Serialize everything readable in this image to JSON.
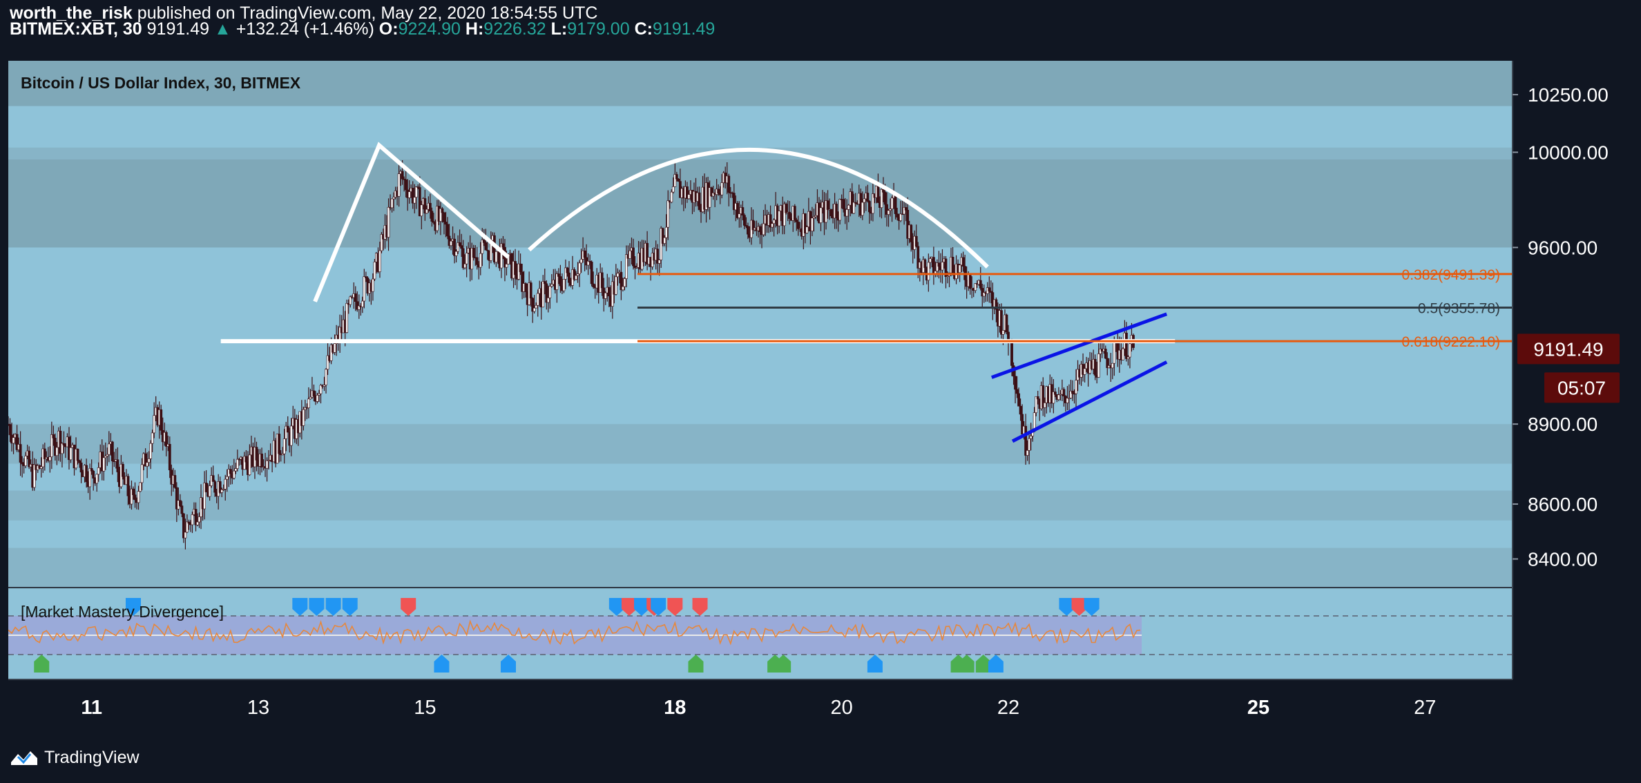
{
  "header": {
    "publisher": "worth_the_risk",
    "published_text": "published on TradingView.com, May 22, 2020 18:54:55 UTC",
    "symbol_interval": "BITMEX:XBT, 30",
    "last_price": "9191.49",
    "up_arrow": "▲",
    "change": "+132.24 (+1.46%)",
    "o_label": "O:",
    "o_value": "9224.90",
    "h_label": "H:",
    "h_value": "9226.32",
    "l_label": "L:",
    "l_value": "9179.00",
    "c_label": "C:",
    "c_value": "9191.49"
  },
  "chart": {
    "title": "Bitcoin / US Dollar Index, 30, BITMEX",
    "indicator_label": "[Market Mastery Divergence]",
    "price_label": "9191.49",
    "countdown": "05:07",
    "brand": "TradingView",
    "colors": {
      "background": "#8fc3d9",
      "dark_band": "#7fa8b8",
      "mid_band": "#87b4c7",
      "candle": "#3b0f14",
      "fib": "#e8590c",
      "fib_mid": "#2f3b44",
      "neckline": "#ffffff",
      "wedge": "#0a14e6",
      "price_tag": "#5c0b0b",
      "indicator_band": "#9aaad9",
      "osc": "#e8873a",
      "marker_blue": "#2196f3",
      "marker_red": "#f05454",
      "marker_green": "#4caf50"
    }
  },
  "chart_data": {
    "type": "line",
    "title": "Bitcoin / US Dollar Index, 30, BITMEX",
    "xlabel": "",
    "ylabel": "",
    "y_scale": "log",
    "ylim": [
      8300,
      10400
    ],
    "x_ticks": [
      {
        "label": "11",
        "bold": true,
        "day": 11
      },
      {
        "label": "13",
        "bold": false,
        "day": 13
      },
      {
        "label": "15",
        "bold": false,
        "day": 15
      },
      {
        "label": "18",
        "bold": true,
        "day": 18
      },
      {
        "label": "20",
        "bold": false,
        "day": 20
      },
      {
        "label": "22",
        "bold": false,
        "day": 22
      },
      {
        "label": "25",
        "bold": true,
        "day": 25
      },
      {
        "label": "27",
        "bold": false,
        "day": 27
      }
    ],
    "y_ticks": [
      {
        "label": "10250.00",
        "value": 10250
      },
      {
        "label": "10000.00",
        "value": 10000
      },
      {
        "label": "9600.00",
        "value": 9600
      },
      {
        "label": "8900.00",
        "value": 8900
      },
      {
        "label": "8600.00",
        "value": 8600
      },
      {
        "label": "8400.00",
        "value": 8400
      }
    ],
    "bands": [
      {
        "from": 10200,
        "to": 10400,
        "shade": "dark"
      },
      {
        "from": 9600,
        "to": 9970,
        "shade": "dark"
      },
      {
        "from": 9970,
        "to": 10020,
        "shade": "mid"
      },
      {
        "from": 8750,
        "to": 8900,
        "shade": "mid"
      },
      {
        "from": 8540,
        "to": 8650,
        "shade": "mid"
      },
      {
        "from": 8300,
        "to": 8440,
        "shade": "mid"
      }
    ],
    "price_path": [
      {
        "day": 10.0,
        "price": 8900
      },
      {
        "day": 10.3,
        "price": 8700
      },
      {
        "day": 10.6,
        "price": 8850
      },
      {
        "day": 11.0,
        "price": 8700
      },
      {
        "day": 11.2,
        "price": 8800
      },
      {
        "day": 11.5,
        "price": 8600
      },
      {
        "day": 11.8,
        "price": 8950
      },
      {
        "day": 12.1,
        "price": 8500
      },
      {
        "day": 12.4,
        "price": 8650
      },
      {
        "day": 12.8,
        "price": 8750
      },
      {
        "day": 13.2,
        "price": 8800
      },
      {
        "day": 13.5,
        "price": 8900
      },
      {
        "day": 13.8,
        "price": 9100
      },
      {
        "day": 14.1,
        "price": 9350
      },
      {
        "day": 14.4,
        "price": 9500
      },
      {
        "day": 14.7,
        "price": 9900
      },
      {
        "day": 14.9,
        "price": 9800
      },
      {
        "day": 15.2,
        "price": 9700
      },
      {
        "day": 15.5,
        "price": 9550
      },
      {
        "day": 15.8,
        "price": 9600
      },
      {
        "day": 16.1,
        "price": 9500
      },
      {
        "day": 16.3,
        "price": 9380
      },
      {
        "day": 16.6,
        "price": 9450
      },
      {
        "day": 16.9,
        "price": 9550
      },
      {
        "day": 17.2,
        "price": 9400
      },
      {
        "day": 17.5,
        "price": 9560
      },
      {
        "day": 17.8,
        "price": 9580
      },
      {
        "day": 18.0,
        "price": 9850
      },
      {
        "day": 18.3,
        "price": 9800
      },
      {
        "day": 18.6,
        "price": 9880
      },
      {
        "day": 18.9,
        "price": 9650
      },
      {
        "day": 19.2,
        "price": 9750
      },
      {
        "day": 19.5,
        "price": 9700
      },
      {
        "day": 19.8,
        "price": 9750
      },
      {
        "day": 20.1,
        "price": 9780
      },
      {
        "day": 20.4,
        "price": 9800
      },
      {
        "day": 20.7,
        "price": 9760
      },
      {
        "day": 21.0,
        "price": 9500
      },
      {
        "day": 21.3,
        "price": 9540
      },
      {
        "day": 21.6,
        "price": 9460
      },
      {
        "day": 21.8,
        "price": 9380
      },
      {
        "day": 22.0,
        "price": 9250
      },
      {
        "day": 22.1,
        "price": 9050
      },
      {
        "day": 22.2,
        "price": 8820
      },
      {
        "day": 22.4,
        "price": 9020
      },
      {
        "day": 22.6,
        "price": 8980
      },
      {
        "day": 22.8,
        "price": 9060
      },
      {
        "day": 23.0,
        "price": 9120
      },
      {
        "day": 23.2,
        "price": 9160
      },
      {
        "day": 23.4,
        "price": 9210
      },
      {
        "day": 23.5,
        "price": 9191
      }
    ],
    "fib_levels": [
      {
        "label": "0.382(9491.39)",
        "value": 9491.39,
        "color": "#e8590c"
      },
      {
        "label": "0.5(9355.78)",
        "value": 9355.78,
        "color": "#2f3b44"
      },
      {
        "label": "0.618(9222.10)",
        "value": 9222.1,
        "color": "#e8590c"
      }
    ],
    "fib_start_day": 17.55,
    "fib_end_day": 30.2,
    "neckline": {
      "from_day": 12.55,
      "to_day": 24.0,
      "value": 9222
    },
    "left_shoulder": [
      {
        "day": 13.68,
        "price": 9380
      },
      {
        "day": 14.45,
        "price": 10030
      },
      {
        "day": 16.0,
        "price": 9560
      }
    ],
    "dome": {
      "from_day": 16.25,
      "to_day": 21.75,
      "start": 9590,
      "peak": 10010,
      "end": 9520
    },
    "wedge": {
      "upper": [
        {
          "day": 21.8,
          "price": 9080
        },
        {
          "day": 23.9,
          "price": 9330
        }
      ],
      "lower": [
        {
          "day": 22.05,
          "price": 8835
        },
        {
          "day": 23.9,
          "price": 9140
        }
      ]
    },
    "current_price": 9191.49,
    "indicator": {
      "name": "[Market Mastery Divergence]",
      "markers": [
        {
          "day": 10.4,
          "type": "green",
          "pos": "bottom"
        },
        {
          "day": 11.5,
          "type": "blue",
          "pos": "top"
        },
        {
          "day": 13.5,
          "type": "blue",
          "pos": "top"
        },
        {
          "day": 13.7,
          "type": "blue",
          "pos": "top"
        },
        {
          "day": 13.9,
          "type": "blue",
          "pos": "top"
        },
        {
          "day": 14.1,
          "type": "blue",
          "pos": "top"
        },
        {
          "day": 14.8,
          "type": "red",
          "pos": "top"
        },
        {
          "day": 15.2,
          "type": "blue",
          "pos": "bottom"
        },
        {
          "day": 16.0,
          "type": "blue",
          "pos": "bottom"
        },
        {
          "day": 17.3,
          "type": "blue",
          "pos": "top"
        },
        {
          "day": 17.45,
          "type": "red",
          "pos": "top"
        },
        {
          "day": 17.6,
          "type": "blue",
          "pos": "top"
        },
        {
          "day": 17.75,
          "type": "red",
          "pos": "top"
        },
        {
          "day": 17.8,
          "type": "blue",
          "pos": "top"
        },
        {
          "day": 18.0,
          "type": "red",
          "pos": "top"
        },
        {
          "day": 18.25,
          "type": "green",
          "pos": "bottom"
        },
        {
          "day": 18.3,
          "type": "red",
          "pos": "top"
        },
        {
          "day": 19.2,
          "type": "green",
          "pos": "bottom"
        },
        {
          "day": 19.3,
          "type": "green",
          "pos": "bottom"
        },
        {
          "day": 20.4,
          "type": "blue",
          "pos": "bottom"
        },
        {
          "day": 21.4,
          "type": "green",
          "pos": "bottom"
        },
        {
          "day": 21.5,
          "type": "green",
          "pos": "bottom"
        },
        {
          "day": 21.7,
          "type": "green",
          "pos": "bottom"
        },
        {
          "day": 21.85,
          "type": "blue",
          "pos": "bottom"
        },
        {
          "day": 22.7,
          "type": "blue",
          "pos": "top"
        },
        {
          "day": 22.85,
          "type": "red",
          "pos": "top"
        },
        {
          "day": 23.0,
          "type": "blue",
          "pos": "top"
        }
      ]
    }
  }
}
